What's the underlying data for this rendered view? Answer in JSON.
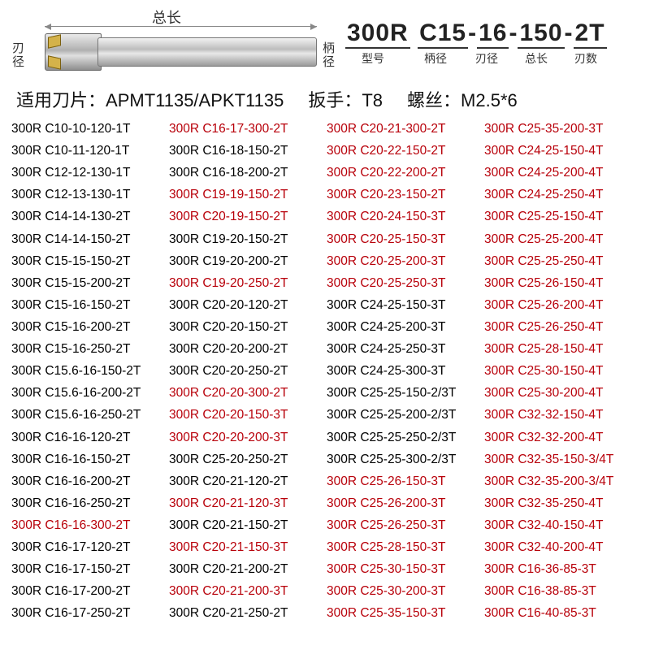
{
  "diagram": {
    "overall_length_label": "总长",
    "edge_dia_label": "刃\n径",
    "shank_dia_label": "柄\n径"
  },
  "model": {
    "segments": [
      "300R",
      "C15",
      "16",
      "150",
      "2T"
    ],
    "labels": [
      "型号",
      "柄径",
      "刃径",
      "总长",
      "刃数"
    ],
    "label_widths": [
      68,
      50,
      40,
      46,
      40
    ]
  },
  "spec": {
    "insert_label": "适用刀片：",
    "insert_value": "APMT1135/APKT1135",
    "wrench_label": "扳手：",
    "wrench_value": "T8",
    "screw_label": "螺丝：",
    "screw_value": "M2.5*6"
  },
  "colors": {
    "black": "#000000",
    "red": "#b8000a"
  },
  "columns": [
    [
      {
        "t": "300R C10-10-120-1T",
        "c": "blk"
      },
      {
        "t": "300R C10-11-120-1T",
        "c": "blk"
      },
      {
        "t": "300R C12-12-130-1T",
        "c": "blk"
      },
      {
        "t": "300R C12-13-130-1T",
        "c": "blk"
      },
      {
        "t": "300R C14-14-130-2T",
        "c": "blk"
      },
      {
        "t": "300R C14-14-150-2T",
        "c": "blk"
      },
      {
        "t": "300R C15-15-150-2T",
        "c": "blk"
      },
      {
        "t": "300R C15-15-200-2T",
        "c": "blk"
      },
      {
        "t": "300R C15-16-150-2T",
        "c": "blk"
      },
      {
        "t": "300R C15-16-200-2T",
        "c": "blk"
      },
      {
        "t": "300R C15-16-250-2T",
        "c": "blk"
      },
      {
        "t": "300R C15.6-16-150-2T",
        "c": "blk"
      },
      {
        "t": "300R C15.6-16-200-2T",
        "c": "blk"
      },
      {
        "t": "300R C15.6-16-250-2T",
        "c": "blk"
      },
      {
        "t": "300R C16-16-120-2T",
        "c": "blk"
      },
      {
        "t": "300R C16-16-150-2T",
        "c": "blk"
      },
      {
        "t": "300R C16-16-200-2T",
        "c": "blk"
      },
      {
        "t": "300R C16-16-250-2T",
        "c": "blk"
      },
      {
        "t": "300R C16-16-300-2T",
        "c": "red"
      },
      {
        "t": "300R C16-17-120-2T",
        "c": "blk"
      },
      {
        "t": "300R C16-17-150-2T",
        "c": "blk"
      },
      {
        "t": "300R C16-17-200-2T",
        "c": "blk"
      },
      {
        "t": "300R C16-17-250-2T",
        "c": "blk"
      }
    ],
    [
      {
        "t": "300R C16-17-300-2T",
        "c": "red"
      },
      {
        "t": "300R C16-18-150-2T",
        "c": "blk"
      },
      {
        "t": "300R C16-18-200-2T",
        "c": "blk"
      },
      {
        "t": "300R C19-19-150-2T",
        "c": "red"
      },
      {
        "t": "300R C20-19-150-2T",
        "c": "red"
      },
      {
        "t": "300R C19-20-150-2T",
        "c": "blk"
      },
      {
        "t": "300R C19-20-200-2T",
        "c": "blk"
      },
      {
        "t": "300R C19-20-250-2T",
        "c": "red"
      },
      {
        "t": "300R C20-20-120-2T",
        "c": "blk"
      },
      {
        "t": "300R C20-20-150-2T",
        "c": "blk"
      },
      {
        "t": "300R C20-20-200-2T",
        "c": "blk"
      },
      {
        "t": "300R C20-20-250-2T",
        "c": "blk"
      },
      {
        "t": "300R C20-20-300-2T",
        "c": "red"
      },
      {
        "t": "300R C20-20-150-3T",
        "c": "red"
      },
      {
        "t": "300R C20-20-200-3T",
        "c": "red"
      },
      {
        "t": "300R C25-20-250-2T",
        "c": "blk"
      },
      {
        "t": "300R C20-21-120-2T",
        "c": "blk"
      },
      {
        "t": "300R C20-21-120-3T",
        "c": "red"
      },
      {
        "t": "300R C20-21-150-2T",
        "c": "blk"
      },
      {
        "t": "300R C20-21-150-3T",
        "c": "red"
      },
      {
        "t": "300R C20-21-200-2T",
        "c": "blk"
      },
      {
        "t": "300R C20-21-200-3T",
        "c": "red"
      },
      {
        "t": "300R C20-21-250-2T",
        "c": "blk"
      }
    ],
    [
      {
        "t": "300R C20-21-300-2T",
        "c": "red"
      },
      {
        "t": "300R C20-22-150-2T",
        "c": "red"
      },
      {
        "t": "300R C20-22-200-2T",
        "c": "red"
      },
      {
        "t": "300R C20-23-150-2T",
        "c": "red"
      },
      {
        "t": "300R C20-24-150-3T",
        "c": "red"
      },
      {
        "t": "300R C20-25-150-3T",
        "c": "red"
      },
      {
        "t": "300R C20-25-200-3T",
        "c": "red"
      },
      {
        "t": "300R C20-25-250-3T",
        "c": "red"
      },
      {
        "t": "300R C24-25-150-3T",
        "c": "blk"
      },
      {
        "t": "300R C24-25-200-3T",
        "c": "blk"
      },
      {
        "t": "300R C24-25-250-3T",
        "c": "blk"
      },
      {
        "t": "300R C24-25-300-3T",
        "c": "blk"
      },
      {
        "t": "300R C25-25-150-2/3T",
        "c": "blk"
      },
      {
        "t": "300R C25-25-200-2/3T",
        "c": "blk"
      },
      {
        "t": "300R C25-25-250-2/3T",
        "c": "blk"
      },
      {
        "t": "300R C25-25-300-2/3T",
        "c": "blk"
      },
      {
        "t": "300R C25-26-150-3T",
        "c": "red"
      },
      {
        "t": "300R C25-26-200-3T",
        "c": "red"
      },
      {
        "t": "300R C25-26-250-3T",
        "c": "red"
      },
      {
        "t": "300R C25-28-150-3T",
        "c": "red"
      },
      {
        "t": "300R C25-30-150-3T",
        "c": "red"
      },
      {
        "t": "300R C25-30-200-3T",
        "c": "red"
      },
      {
        "t": "300R C25-35-150-3T",
        "c": "red"
      }
    ],
    [
      {
        "t": "300R C25-35-200-3T",
        "c": "red"
      },
      {
        "t": "300R C24-25-150-4T",
        "c": "red"
      },
      {
        "t": "300R C24-25-200-4T",
        "c": "red"
      },
      {
        "t": "300R C24-25-250-4T",
        "c": "red"
      },
      {
        "t": "300R C25-25-150-4T",
        "c": "red"
      },
      {
        "t": "300R C25-25-200-4T",
        "c": "red"
      },
      {
        "t": "300R C25-25-250-4T",
        "c": "red"
      },
      {
        "t": "300R C25-26-150-4T",
        "c": "red"
      },
      {
        "t": "300R C25-26-200-4T",
        "c": "red"
      },
      {
        "t": "300R C25-26-250-4T",
        "c": "red"
      },
      {
        "t": "300R C25-28-150-4T",
        "c": "red"
      },
      {
        "t": "300R C25-30-150-4T",
        "c": "red"
      },
      {
        "t": "300R C25-30-200-4T",
        "c": "red"
      },
      {
        "t": "300R C32-32-150-4T",
        "c": "red"
      },
      {
        "t": "300R C32-32-200-4T",
        "c": "red"
      },
      {
        "t": "300R C32-35-150-3/4T",
        "c": "red"
      },
      {
        "t": "300R C32-35-200-3/4T",
        "c": "red"
      },
      {
        "t": "300R C32-35-250-4T",
        "c": "red"
      },
      {
        "t": "300R C32-40-150-4T",
        "c": "red"
      },
      {
        "t": "300R C32-40-200-4T",
        "c": "red"
      },
      {
        "t": "300R C16-36-85-3T",
        "c": "red"
      },
      {
        "t": "300R C16-38-85-3T",
        "c": "red"
      },
      {
        "t": "300R C16-40-85-3T",
        "c": "red"
      }
    ]
  ]
}
